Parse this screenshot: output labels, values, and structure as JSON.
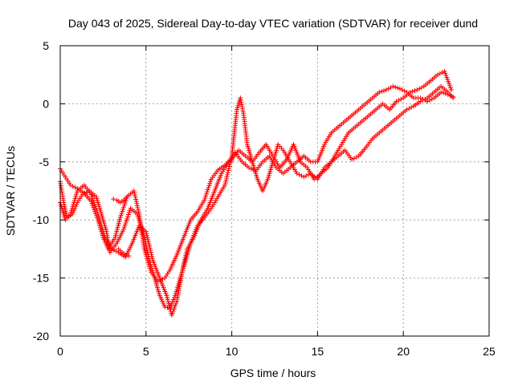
{
  "chart_data": {
    "type": "scatter",
    "title": "Day 043 of 2025, Sidereal Day-to-day VTEC variation (SDTVAR) for receiver dund",
    "xlabel": "GPS time / hours",
    "ylabel": "SDTVAR / TECUs",
    "xlim": [
      0,
      25
    ],
    "ylim": [
      -20,
      5
    ],
    "xticks": [
      "0",
      "5",
      "10",
      "15",
      "20",
      "25"
    ],
    "yticks": [
      "5",
      "0",
      "-5",
      "-10",
      "-15",
      "-20"
    ],
    "grid": true,
    "marker": "+",
    "color": "#ff0000",
    "series": [
      {
        "values": [
          [
            0.0,
            -5.6
          ],
          [
            0.3,
            -6.3
          ],
          [
            0.6,
            -7.0
          ],
          [
            1.0,
            -7.3
          ],
          [
            1.4,
            -7.7
          ],
          [
            1.8,
            -8.4
          ],
          [
            2.2,
            -10.0
          ],
          [
            2.5,
            -11.5
          ],
          [
            2.8,
            -12.5
          ],
          [
            3.2,
            -11.5
          ],
          [
            3.5,
            -9.8
          ],
          [
            3.9,
            -8.0
          ],
          [
            4.3,
            -7.5
          ],
          [
            4.6,
            -9.5
          ],
          [
            4.9,
            -12.5
          ],
          [
            5.3,
            -14.5
          ],
          [
            5.7,
            -15.3
          ],
          [
            6.1,
            -15.0
          ],
          [
            6.4,
            -14.3
          ],
          [
            6.8,
            -13.0
          ],
          [
            7.2,
            -11.5
          ],
          [
            7.6,
            -10.0
          ],
          [
            8.0,
            -9.3
          ],
          [
            8.4,
            -8.3
          ],
          [
            8.8,
            -6.5
          ],
          [
            9.2,
            -5.7
          ],
          [
            9.6,
            -5.3
          ],
          [
            10.0,
            -4.8
          ],
          [
            10.4,
            -4.0
          ],
          [
            10.8,
            -4.5
          ],
          [
            11.2,
            -5.0
          ],
          [
            11.6,
            -4.2
          ],
          [
            12.0,
            -3.5
          ],
          [
            12.4,
            -4.5
          ],
          [
            12.8,
            -5.5
          ],
          [
            13.2,
            -4.8
          ],
          [
            13.6,
            -3.5
          ],
          [
            14.0,
            -5.0
          ],
          [
            14.4,
            -5.5
          ],
          [
            14.8,
            -6.5
          ],
          [
            15.2,
            -6.0
          ],
          [
            15.6,
            -5.5
          ],
          [
            16.0,
            -4.5
          ],
          [
            16.4,
            -3.5
          ],
          [
            16.8,
            -2.5
          ],
          [
            17.2,
            -2.0
          ],
          [
            17.6,
            -1.5
          ],
          [
            18.0,
            -1.0
          ],
          [
            18.4,
            -0.5
          ],
          [
            18.8,
            0.0
          ],
          [
            19.2,
            -0.5
          ],
          [
            19.6,
            0.2
          ],
          [
            20.0,
            0.5
          ],
          [
            20.4,
            1.0
          ],
          [
            20.8,
            1.2
          ],
          [
            21.2,
            1.5
          ],
          [
            21.6,
            2.0
          ],
          [
            22.0,
            2.5
          ],
          [
            22.4,
            2.8
          ],
          [
            22.8,
            1.2
          ]
        ]
      },
      {
        "values": [
          [
            0.0,
            -6.7
          ],
          [
            0.2,
            -8.5
          ],
          [
            0.4,
            -9.8
          ],
          [
            0.7,
            -9.5
          ],
          [
            1.0,
            -8.5
          ],
          [
            1.3,
            -7.8
          ],
          [
            1.7,
            -7.5
          ],
          [
            2.1,
            -8.0
          ],
          [
            2.4,
            -9.5
          ],
          [
            2.7,
            -11.0
          ],
          [
            2.9,
            -12.8
          ],
          [
            3.3,
            -12.0
          ],
          [
            3.7,
            -10.8
          ],
          [
            4.1,
            -9.0
          ],
          [
            4.5,
            -9.5
          ],
          [
            4.9,
            -11.5
          ],
          [
            5.2,
            -13.5
          ],
          [
            5.5,
            -15.0
          ],
          [
            5.8,
            -16.5
          ],
          [
            6.1,
            -17.5
          ],
          [
            6.4,
            -17.6
          ],
          [
            6.7,
            -16.5
          ],
          [
            7.0,
            -15.0
          ],
          [
            7.3,
            -13.5
          ],
          [
            7.6,
            -12.0
          ],
          [
            8.0,
            -10.5
          ],
          [
            8.4,
            -9.8
          ],
          [
            8.8,
            -9.0
          ],
          [
            9.2,
            -8.0
          ],
          [
            9.6,
            -7.0
          ],
          [
            10.0,
            -4.5
          ],
          [
            10.3,
            -0.5
          ],
          [
            10.5,
            0.5
          ],
          [
            10.7,
            -1.0
          ],
          [
            10.9,
            -3.5
          ],
          [
            11.2,
            -5.0
          ],
          [
            11.5,
            -6.5
          ],
          [
            11.8,
            -7.5
          ],
          [
            12.1,
            -6.5
          ],
          [
            12.4,
            -5.0
          ],
          [
            12.7,
            -3.5
          ],
          [
            13.0,
            -4.0
          ],
          [
            13.4,
            -5.0
          ],
          [
            13.8,
            -6.0
          ],
          [
            14.2,
            -6.3
          ],
          [
            14.6,
            -6.0
          ],
          [
            15.0,
            -6.5
          ],
          [
            15.4,
            -5.5
          ],
          [
            15.8,
            -5.0
          ],
          [
            16.2,
            -4.5
          ],
          [
            16.6,
            -4.0
          ],
          [
            17.0,
            -4.8
          ],
          [
            17.4,
            -4.5
          ],
          [
            17.8,
            -3.8
          ],
          [
            18.2,
            -3.0
          ],
          [
            18.6,
            -2.5
          ],
          [
            19.0,
            -2.0
          ],
          [
            19.4,
            -1.5
          ],
          [
            19.8,
            -1.0
          ],
          [
            20.2,
            -0.5
          ],
          [
            20.6,
            -0.2
          ],
          [
            21.0,
            0.2
          ],
          [
            21.4,
            0.5
          ],
          [
            21.8,
            1.0
          ],
          [
            22.2,
            1.5
          ],
          [
            22.6,
            1.0
          ],
          [
            22.9,
            0.5
          ]
        ]
      },
      {
        "values": [
          [
            0.0,
            -8.5
          ],
          [
            0.3,
            -10.0
          ],
          [
            0.6,
            -9.5
          ],
          [
            1.0,
            -7.5
          ],
          [
            1.4,
            -7.0
          ],
          [
            1.8,
            -7.8
          ],
          [
            2.2,
            -9.5
          ],
          [
            2.6,
            -11.5
          ],
          [
            3.0,
            -12.5
          ],
          [
            3.4,
            -12.8
          ],
          [
            3.8,
            -13.2
          ],
          [
            4.2,
            -12.0
          ],
          [
            4.6,
            -10.5
          ],
          [
            5.0,
            -11.0
          ],
          [
            5.4,
            -13.5
          ],
          [
            5.8,
            -15.0
          ],
          [
            6.2,
            -16.5
          ],
          [
            6.5,
            -18.2
          ],
          [
            6.8,
            -17.0
          ],
          [
            7.1,
            -14.5
          ],
          [
            7.4,
            -12.5
          ],
          [
            7.8,
            -11.5
          ],
          [
            8.2,
            -10.0
          ],
          [
            8.6,
            -9.0
          ],
          [
            9.0,
            -7.5
          ],
          [
            9.4,
            -6.0
          ],
          [
            9.8,
            -5.0
          ],
          [
            10.2,
            -4.2
          ],
          [
            10.6,
            -5.0
          ],
          [
            11.0,
            -5.5
          ],
          [
            11.4,
            -5.8
          ],
          [
            11.8,
            -5.0
          ],
          [
            12.2,
            -4.5
          ],
          [
            12.6,
            -5.5
          ],
          [
            13.0,
            -6.0
          ],
          [
            13.4,
            -5.5
          ],
          [
            13.8,
            -5.0
          ],
          [
            14.2,
            -4.5
          ],
          [
            14.6,
            -5.0
          ],
          [
            15.0,
            -5.0
          ],
          [
            15.4,
            -3.5
          ],
          [
            15.8,
            -2.5
          ],
          [
            16.2,
            -2.0
          ],
          [
            16.6,
            -1.5
          ],
          [
            17.0,
            -1.0
          ],
          [
            17.4,
            -0.5
          ],
          [
            17.8,
            0.0
          ],
          [
            18.2,
            0.5
          ],
          [
            18.6,
            1.0
          ],
          [
            19.0,
            1.2
          ],
          [
            19.4,
            1.5
          ],
          [
            19.8,
            1.3
          ],
          [
            20.2,
            1.0
          ],
          [
            20.6,
            0.5
          ],
          [
            21.0,
            0.5
          ],
          [
            21.4,
            0.2
          ],
          [
            21.8,
            0.5
          ],
          [
            22.2,
            1.0
          ],
          [
            22.6,
            0.8
          ],
          [
            22.9,
            0.6
          ]
        ]
      },
      {
        "values": [
          [
            3.1,
            -8.2
          ],
          [
            3.3,
            -8.3
          ],
          [
            3.5,
            -8.5
          ],
          [
            3.7,
            -8.3
          ],
          [
            3.9,
            -8.0
          ]
        ]
      },
      {
        "values": [
          [
            3.4,
            -12.5
          ],
          [
            3.6,
            -12.8
          ],
          [
            3.8,
            -13.0
          ],
          [
            4.0,
            -13.1
          ]
        ]
      }
    ]
  }
}
